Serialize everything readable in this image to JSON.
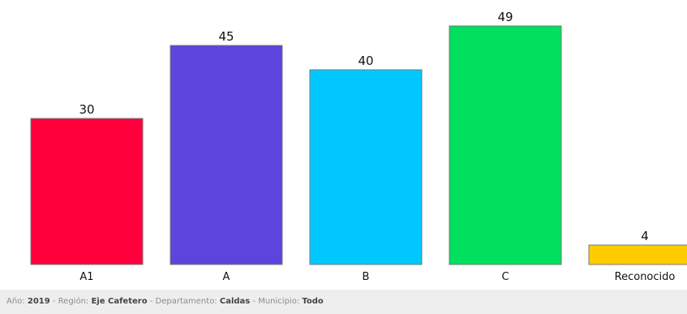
{
  "chart_data": {
    "type": "bar",
    "categories": [
      "A1",
      "A",
      "B",
      "C",
      "Reconocido"
    ],
    "values": [
      30,
      45,
      40,
      49,
      4
    ],
    "colors": [
      "#ff003c",
      "#5c44dc",
      "#00c8ff",
      "#00e05e",
      "#ffcc00"
    ],
    "ylim": [
      0,
      50
    ],
    "grid": false,
    "legend": "none"
  },
  "footer": {
    "year_label": "Año:",
    "year_value": "2019",
    "region_label": "Región:",
    "region_value": "Eje Cafetero",
    "department_label": "Departamento:",
    "department_value": "Caldas",
    "municipality_label": "Municipio:",
    "municipality_value": "Todo",
    "separator": " - "
  }
}
